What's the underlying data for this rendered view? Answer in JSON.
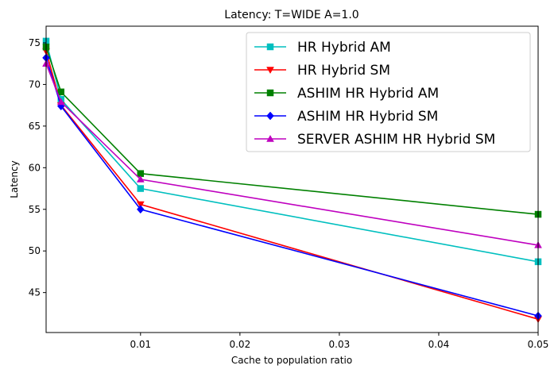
{
  "chart_data": {
    "type": "line",
    "title": "Latency: T=WIDE A=1.0",
    "xlabel": "Cache to population ratio",
    "ylabel": "Latency",
    "xlim": [
      0.0005,
      0.05
    ],
    "ylim": [
      40.2,
      77.0
    ],
    "x": [
      0.0005,
      0.002,
      0.01,
      0.05
    ],
    "xticks": [
      0.01,
      0.02,
      0.03,
      0.04,
      0.05
    ],
    "xtick_labels": [
      "0.01",
      "0.02",
      "0.03",
      "0.04",
      "0.05"
    ],
    "yticks": [
      45,
      50,
      55,
      60,
      65,
      70,
      75
    ],
    "ytick_labels": [
      "45",
      "50",
      "55",
      "60",
      "65",
      "70",
      "75"
    ],
    "grid": false,
    "legend_position": "top-right",
    "series": [
      {
        "name": "HR Hybrid AM",
        "color": "#00bfbf",
        "marker": "square",
        "values": [
          75.2,
          68.2,
          57.5,
          48.7
        ]
      },
      {
        "name": "HR Hybrid SM",
        "color": "#ff0000",
        "marker": "triangle-down",
        "values": [
          74.0,
          67.5,
          55.6,
          41.8
        ]
      },
      {
        "name": "ASHIM HR Hybrid AM",
        "color": "#008000",
        "marker": "square",
        "values": [
          74.5,
          69.1,
          59.3,
          54.4
        ]
      },
      {
        "name": "ASHIM HR Hybrid SM",
        "color": "#0000ff",
        "marker": "diamond",
        "values": [
          73.2,
          67.4,
          55.0,
          42.2
        ]
      },
      {
        "name": "SERVER ASHIM HR Hybrid SM",
        "color": "#bf00bf",
        "marker": "triangle-up",
        "values": [
          72.5,
          67.9,
          58.6,
          50.7
        ]
      }
    ]
  }
}
